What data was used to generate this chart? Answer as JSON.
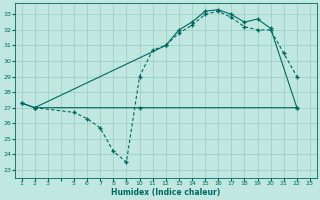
{
  "xlabel": "Humidex (Indice chaleur)",
  "background_color": "#c0e8e0",
  "grid_color": "#98ccc4",
  "line_color": "#006860",
  "xlim": [
    0.5,
    23.5
  ],
  "ylim": [
    22.5,
    33.7
  ],
  "xticks": [
    1,
    2,
    3,
    4,
    5,
    6,
    7,
    8,
    9,
    10,
    11,
    12,
    13,
    14,
    15,
    16,
    17,
    18,
    19,
    20,
    21,
    22,
    23
  ],
  "xtick_labels": [
    "1",
    "2",
    "3",
    "",
    "5",
    "6",
    "7",
    "8",
    "9",
    "10",
    "11",
    "12",
    "13",
    "14",
    "15",
    "16",
    "17",
    "18",
    "19",
    "20",
    "21",
    "22",
    "23"
  ],
  "yticks": [
    23,
    24,
    25,
    26,
    27,
    28,
    29,
    30,
    31,
    32,
    33
  ],
  "line1_x": [
    1,
    2,
    10,
    22
  ],
  "line1_y": [
    27.3,
    27.0,
    27.0,
    27.0
  ],
  "line2_x": [
    2,
    5,
    6,
    7,
    8,
    9,
    10,
    11,
    12,
    13,
    14,
    15,
    16,
    17,
    18,
    19,
    20,
    21,
    22
  ],
  "line2_y": [
    27.0,
    26.7,
    26.3,
    25.7,
    24.2,
    23.5,
    29.0,
    30.7,
    31.0,
    31.8,
    32.3,
    33.0,
    33.2,
    32.8,
    32.2,
    32.0,
    32.0,
    30.5,
    29.0
  ],
  "line3_x": [
    1,
    2,
    12,
    13,
    14,
    15,
    16,
    17,
    18,
    19,
    20,
    22
  ],
  "line3_y": [
    27.3,
    27.0,
    31.0,
    32.0,
    32.5,
    33.2,
    33.3,
    33.0,
    32.5,
    32.7,
    32.1,
    27.0
  ]
}
